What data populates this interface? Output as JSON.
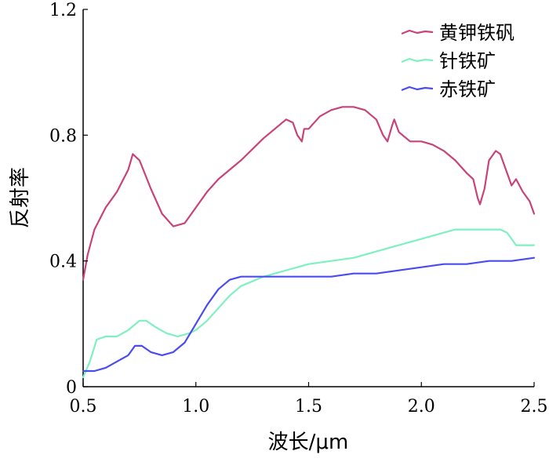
{
  "chart_data": {
    "type": "line",
    "xlabel": "波长/μm",
    "ylabel": "反射率",
    "xlim": [
      0.5,
      2.5
    ],
    "ylim": [
      0,
      1.2
    ],
    "x_ticks": [
      "0.5",
      "1.0",
      "1.5",
      "2.0",
      "2.5"
    ],
    "y_ticks": [
      "0",
      "0.4",
      "0.8",
      "1.2"
    ],
    "grid": false,
    "legend_position": "top-right",
    "series": [
      {
        "name": "黄钾铁矾",
        "color": "#c8437a",
        "x": [
          0.5,
          0.52,
          0.55,
          0.6,
          0.65,
          0.7,
          0.72,
          0.75,
          0.8,
          0.85,
          0.9,
          0.95,
          1.0,
          1.05,
          1.1,
          1.2,
          1.3,
          1.35,
          1.4,
          1.43,
          1.45,
          1.47,
          1.48,
          1.5,
          1.55,
          1.6,
          1.65,
          1.7,
          1.75,
          1.8,
          1.83,
          1.85,
          1.87,
          1.88,
          1.9,
          1.95,
          2.0,
          2.05,
          2.1,
          2.15,
          2.2,
          2.23,
          2.25,
          2.26,
          2.28,
          2.3,
          2.33,
          2.35,
          2.38,
          2.4,
          2.42,
          2.45,
          2.48,
          2.5
        ],
        "y": [
          0.34,
          0.42,
          0.5,
          0.57,
          0.62,
          0.69,
          0.74,
          0.72,
          0.63,
          0.55,
          0.51,
          0.52,
          0.57,
          0.62,
          0.66,
          0.72,
          0.79,
          0.82,
          0.85,
          0.84,
          0.8,
          0.78,
          0.82,
          0.82,
          0.86,
          0.88,
          0.89,
          0.89,
          0.88,
          0.85,
          0.8,
          0.78,
          0.83,
          0.85,
          0.81,
          0.78,
          0.78,
          0.77,
          0.75,
          0.72,
          0.68,
          0.66,
          0.6,
          0.58,
          0.63,
          0.72,
          0.75,
          0.74,
          0.68,
          0.64,
          0.66,
          0.62,
          0.59,
          0.55
        ]
      },
      {
        "name": "针铁矿",
        "color": "#7ff0c0",
        "x": [
          0.5,
          0.53,
          0.56,
          0.6,
          0.65,
          0.7,
          0.75,
          0.78,
          0.82,
          0.87,
          0.92,
          0.97,
          1.0,
          1.05,
          1.1,
          1.15,
          1.2,
          1.3,
          1.4,
          1.5,
          1.6,
          1.7,
          1.8,
          1.9,
          2.0,
          2.05,
          2.1,
          2.15,
          2.2,
          2.25,
          2.3,
          2.35,
          2.38,
          2.4,
          2.42,
          2.45,
          2.5
        ],
        "y": [
          0.03,
          0.08,
          0.15,
          0.16,
          0.16,
          0.18,
          0.21,
          0.21,
          0.19,
          0.17,
          0.16,
          0.17,
          0.18,
          0.21,
          0.25,
          0.29,
          0.32,
          0.35,
          0.37,
          0.39,
          0.4,
          0.41,
          0.43,
          0.45,
          0.47,
          0.48,
          0.49,
          0.5,
          0.5,
          0.5,
          0.5,
          0.5,
          0.49,
          0.47,
          0.45,
          0.45,
          0.45
        ]
      },
      {
        "name": "赤铁矿",
        "color": "#4a4cf0",
        "x": [
          0.5,
          0.55,
          0.6,
          0.65,
          0.7,
          0.73,
          0.76,
          0.8,
          0.85,
          0.9,
          0.95,
          1.0,
          1.05,
          1.1,
          1.15,
          1.2,
          1.25,
          1.3,
          1.4,
          1.5,
          1.6,
          1.7,
          1.8,
          1.9,
          2.0,
          2.1,
          2.2,
          2.3,
          2.4,
          2.5
        ],
        "y": [
          0.05,
          0.05,
          0.06,
          0.08,
          0.1,
          0.13,
          0.13,
          0.11,
          0.1,
          0.11,
          0.14,
          0.2,
          0.26,
          0.31,
          0.34,
          0.35,
          0.35,
          0.35,
          0.35,
          0.35,
          0.35,
          0.36,
          0.36,
          0.37,
          0.38,
          0.39,
          0.39,
          0.4,
          0.4,
          0.41
        ]
      }
    ]
  }
}
